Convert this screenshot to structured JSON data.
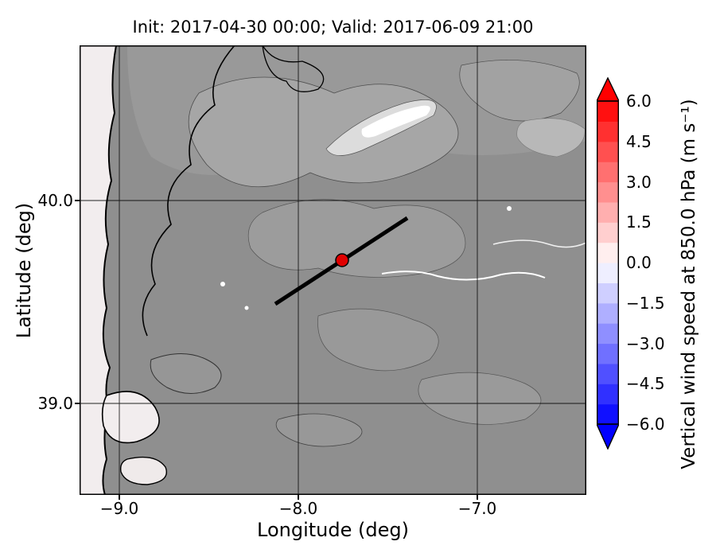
{
  "title": "Init: 2017-04-30 00:00; Valid: 2017-06-09 21:00",
  "axes": {
    "xlabel": "Longitude (deg)",
    "ylabel": "Latitude (deg)",
    "xtick_labels": [
      "−9.0",
      "−8.0",
      "−7.0"
    ],
    "ytick_labels": [
      "40.0",
      "39.0"
    ]
  },
  "colorbar": {
    "label": "Vertical wind speed at 850.0 hPa (m s⁻¹)",
    "tick_labels": [
      "6.0",
      "4.5",
      "3.0",
      "1.5",
      "0.0",
      "−1.5",
      "−3.0",
      "−4.5",
      "−6.0"
    ],
    "extend_max_color": "#ff0000",
    "extend_min_color": "#0000ff",
    "segment_colors_bottom_to_top": [
      "#1010ff",
      "#3030ff",
      "#5050ff",
      "#7070ff",
      "#8f8fff",
      "#afafff",
      "#cfcfff",
      "#efefff",
      "#ffefef",
      "#ffcfcf",
      "#ffafaf",
      "#ff8f8f",
      "#ff7070",
      "#ff5050",
      "#ff3030",
      "#ff1010"
    ]
  },
  "chart_data": {
    "type": "heatmap",
    "title": "Init: 2017-04-30 00:00; Valid: 2017-06-09 21:00",
    "xlabel": "Longitude (deg)",
    "ylabel": "Latitude (deg)",
    "xlim": [
      -9.22,
      -6.39
    ],
    "ylim": [
      38.54,
      40.76
    ],
    "xticks": [
      -9.0,
      -8.0,
      -7.0
    ],
    "yticks": [
      39.0,
      40.0
    ],
    "grid": true,
    "field": "vertical wind speed at 850.0 hPa",
    "units": "m s⁻¹",
    "value_range": [
      -6.0,
      6.0
    ],
    "colorbar_ticks": [
      6.0,
      4.5,
      3.0,
      1.5,
      0.0,
      -1.5,
      -3.0,
      -4.5,
      -6.0
    ],
    "colormap": "blue-white-red (bwr), discrete steps of 0.75, extended arrows both ends",
    "field_summary": "Vertical wind speed near 0 m/s over the whole domain; underlying grayscale terrain shading of Portugal/western Iberia with black Atlantic coastline along the left edge and pale ocean strip",
    "base_map_color": "#8f8f8f",
    "ocean_color": "#f2edee",
    "overlays": {
      "cross_section_line": {
        "type": "line",
        "x": [
          -8.13,
          -7.39
        ],
        "y": [
          39.49,
          39.91
        ],
        "color": "#000000",
        "width": 5
      },
      "point_marker": {
        "type": "circle",
        "x": -7.76,
        "y": 39.71,
        "fill": "#e00000",
        "edge": "#000000"
      }
    }
  }
}
